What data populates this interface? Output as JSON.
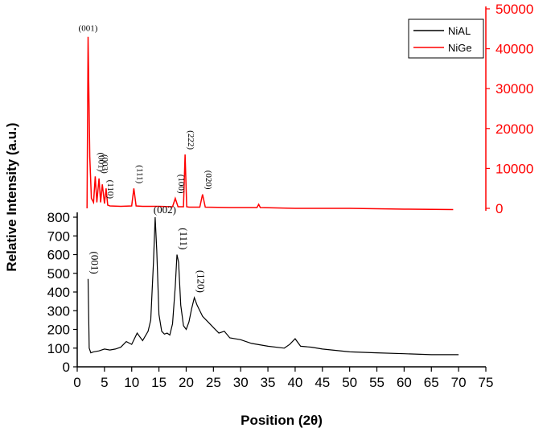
{
  "chart_data": {
    "type": "line",
    "xlabel": "Position (2θ)",
    "ylabel": "Relative Intensity (a.u.)",
    "xlim": [
      0,
      75
    ],
    "x_ticks": [
      "0",
      "5",
      "10",
      "15",
      "20",
      "25",
      "30",
      "35",
      "40",
      "45",
      "50",
      "55",
      "60",
      "65",
      "70",
      "75"
    ],
    "y_left_ticks": [
      "0",
      "100",
      "200",
      "300",
      "400",
      "500",
      "600",
      "700",
      "800"
    ],
    "y_right_ticks": [
      "0",
      "10000",
      "20000",
      "30000",
      "40000",
      "50000"
    ],
    "ylim_left": [
      0,
      800
    ],
    "ylim_right": [
      0,
      50000
    ],
    "legend_position": "top-right",
    "series": [
      {
        "name": "NiAL",
        "color": "#000000",
        "axis": "left",
        "x": [
          2.0,
          2.2,
          2.5,
          3.0,
          4.0,
          5.0,
          6.0,
          7.0,
          8.0,
          9.0,
          10.0,
          10.5,
          11.0,
          11.5,
          12.0,
          13.0,
          13.5,
          14.0,
          14.3,
          14.6,
          15.0,
          15.5,
          16.0,
          16.5,
          17.0,
          17.5,
          18.0,
          18.3,
          18.6,
          19.0,
          19.5,
          20.0,
          20.5,
          21.0,
          21.5,
          22.0,
          23.0,
          24.0,
          25.0,
          26.0,
          27.0,
          28.0,
          30.0,
          32.0,
          35.0,
          38.0,
          39.0,
          40.0,
          41.0,
          43.0,
          45.0,
          50.0,
          55.0,
          60.0,
          65.0,
          70.0
        ],
        "values": [
          470,
          100,
          75,
          80,
          85,
          95,
          90,
          95,
          105,
          135,
          120,
          150,
          180,
          160,
          140,
          190,
          250,
          560,
          800,
          620,
          280,
          190,
          175,
          180,
          170,
          230,
          430,
          600,
          560,
          330,
          220,
          200,
          240,
          310,
          370,
          330,
          270,
          240,
          210,
          180,
          190,
          155,
          145,
          125,
          110,
          100,
          120,
          150,
          110,
          105,
          95,
          80,
          75,
          70,
          65,
          65
        ]
      },
      {
        "name": "NiGe",
        "color": "#ff0000",
        "axis": "right",
        "x": [
          1.8,
          2.0,
          2.3,
          2.6,
          3.0,
          3.3,
          3.6,
          4.0,
          4.3,
          4.6,
          5.0,
          5.3,
          5.6,
          6.0,
          8.0,
          10.0,
          10.4,
          10.8,
          12.0,
          15.0,
          17.5,
          18.0,
          18.5,
          19.5,
          19.8,
          20.1,
          20.5,
          22.5,
          23.0,
          23.5,
          28.0,
          33.0,
          33.3,
          33.6,
          40.0,
          50.0,
          60.0,
          69.0
        ],
        "values": [
          0,
          43000,
          13000,
          2500,
          1500,
          8000,
          1500,
          7500,
          1500,
          6000,
          1200,
          5000,
          800,
          600,
          500,
          600,
          5000,
          600,
          500,
          500,
          400,
          2500,
          400,
          400,
          13500,
          400,
          300,
          300,
          3500,
          300,
          200,
          200,
          1000,
          200,
          0,
          0,
          -200,
          -300
        ]
      }
    ],
    "annotations": [
      {
        "text": "(001)",
        "series": "NiAL",
        "x": 2.0
      },
      {
        "text": "(002)",
        "series": "NiAL",
        "x": 14.3
      },
      {
        "text": "(111)",
        "series": "NiAL",
        "x": 18.3
      },
      {
        "text": "(120)",
        "series": "NiAL",
        "x": 21.5
      },
      {
        "text": "(001)",
        "series": "NiGe",
        "x": 2.0
      },
      {
        "text": "(001)",
        "series": "NiGe",
        "x": 3.3
      },
      {
        "text": "(003)",
        "series": "NiGe",
        "x": 4.0
      },
      {
        "text": "(110)",
        "series": "NiGe",
        "x": 5.0
      },
      {
        "text": "(111)",
        "series": "NiGe",
        "x": 10.4
      },
      {
        "text": "(100)",
        "series": "NiGe",
        "x": 18.0
      },
      {
        "text": "(222)",
        "series": "NiGe",
        "x": 19.8
      },
      {
        "text": "(020)",
        "series": "NiGe",
        "x": 23.0
      }
    ]
  }
}
